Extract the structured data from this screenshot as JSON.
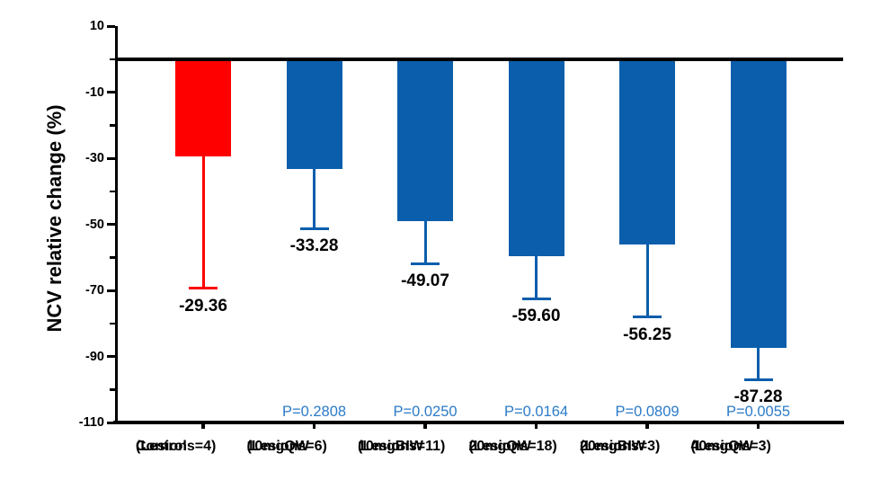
{
  "chart_data": {
    "type": "bar",
    "title": "",
    "xlabel": "",
    "ylabel": "NCV relative change (%)",
    "ylim": [
      -110,
      10
    ],
    "y_major_ticks": [
      10,
      -10,
      -30,
      -50,
      -70,
      -90,
      -110
    ],
    "y_minor_ticks": [
      0,
      -20,
      -40,
      -60,
      -80,
      -100
    ],
    "grid": false,
    "legend": false,
    "baseline": 0,
    "categories": [
      "Control",
      "10mgQW",
      "10mgBIW",
      "20mgQW",
      "20mgBIW",
      "40mgQW"
    ],
    "series": [
      {
        "category": "Control",
        "sublabel": "(Lesions=4)",
        "value": -29.36,
        "value_label": "-29.36",
        "error_below": 40.0,
        "p_label": "",
        "color": "#fe0000"
      },
      {
        "category": "10mgQW",
        "sublabel": "(Lesions=6)",
        "value": -33.28,
        "value_label": "-33.28",
        "error_below": 18.0,
        "p_label": "P=0.2808",
        "color": "#0b5eac"
      },
      {
        "category": "10mgBIW",
        "sublabel": "(Lesions=11)",
        "value": -49.07,
        "value_label": "-49.07",
        "error_below": 12.8,
        "p_label": "P=0.0250",
        "color": "#0b5eac"
      },
      {
        "category": "20mgQW",
        "sublabel": "(Lesions=18)",
        "value": -59.6,
        "value_label": "-59.60",
        "error_below": 12.9,
        "p_label": "P=0.0164",
        "color": "#0b5eac"
      },
      {
        "category": "20mgBIW",
        "sublabel": "(Lesions=3)",
        "value": -56.25,
        "value_label": "-56.25",
        "error_below": 21.9,
        "p_label": "P=0.0809",
        "color": "#0b5eac"
      },
      {
        "category": "40mgQW",
        "sublabel": "(Lesions=3)",
        "value": -87.28,
        "value_label": "-87.28",
        "error_below": 9.7,
        "p_label": "P=0.0055",
        "color": "#0b5eac"
      }
    ],
    "colors": {
      "control_bar": "#fe0000",
      "treatment_bar": "#0b5eac",
      "p_label_text": "#2b7bc9",
      "axis": "#000000",
      "text": "#000000",
      "background": "#ffffff"
    }
  }
}
